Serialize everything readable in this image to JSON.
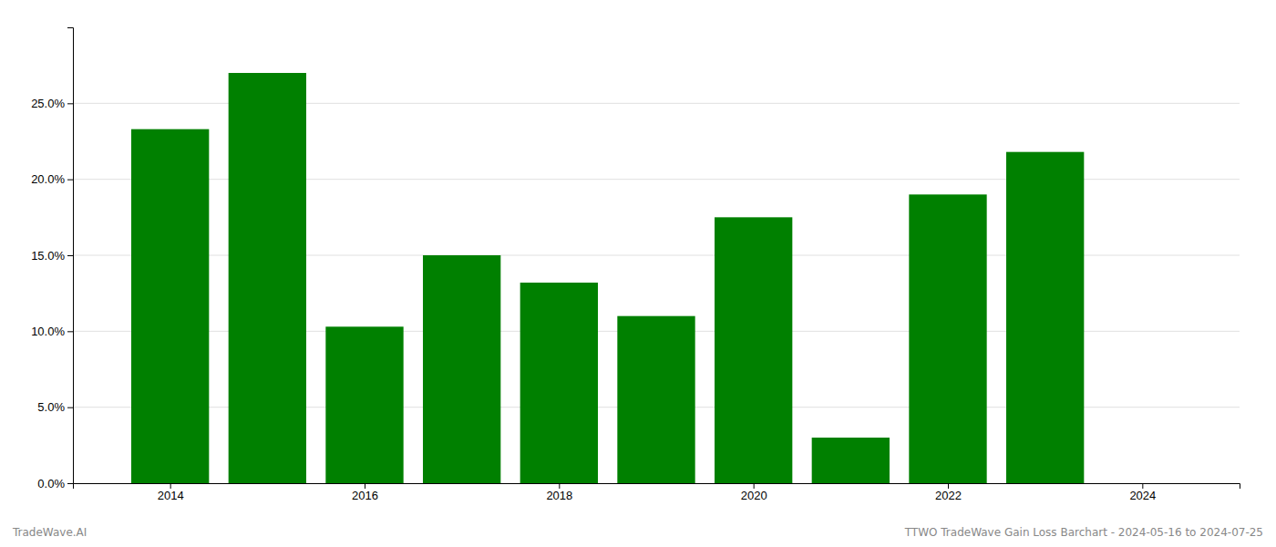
{
  "chart_data": {
    "type": "bar",
    "x": [
      2014,
      2015,
      2016,
      2017,
      2018,
      2019,
      2020,
      2021,
      2022,
      2023
    ],
    "values": [
      0.233,
      0.27,
      0.103,
      0.15,
      0.132,
      0.11,
      0.175,
      0.03,
      0.19,
      0.218
    ],
    "color": "#008000",
    "xlim": [
      2013,
      2025
    ],
    "xticks": [
      2014,
      2016,
      2018,
      2020,
      2022,
      2024
    ],
    "ylim": [
      0,
      0.3
    ],
    "yticks": [
      {
        "value": 0,
        "label": "0.0%"
      },
      {
        "value": 0.05,
        "label": "5.0%"
      },
      {
        "value": 0.1,
        "label": "10.0%"
      },
      {
        "value": 0.15,
        "label": "15.0%"
      },
      {
        "value": 0.2,
        "label": "20.0%"
      },
      {
        "value": 0.25,
        "label": "25.0%"
      }
    ],
    "grid": true,
    "annotations": [
      "TradeWave.AI",
      "TTWO TradeWave Gain Loss Barchart - 2024-05-16 to 2024-07-25"
    ]
  }
}
